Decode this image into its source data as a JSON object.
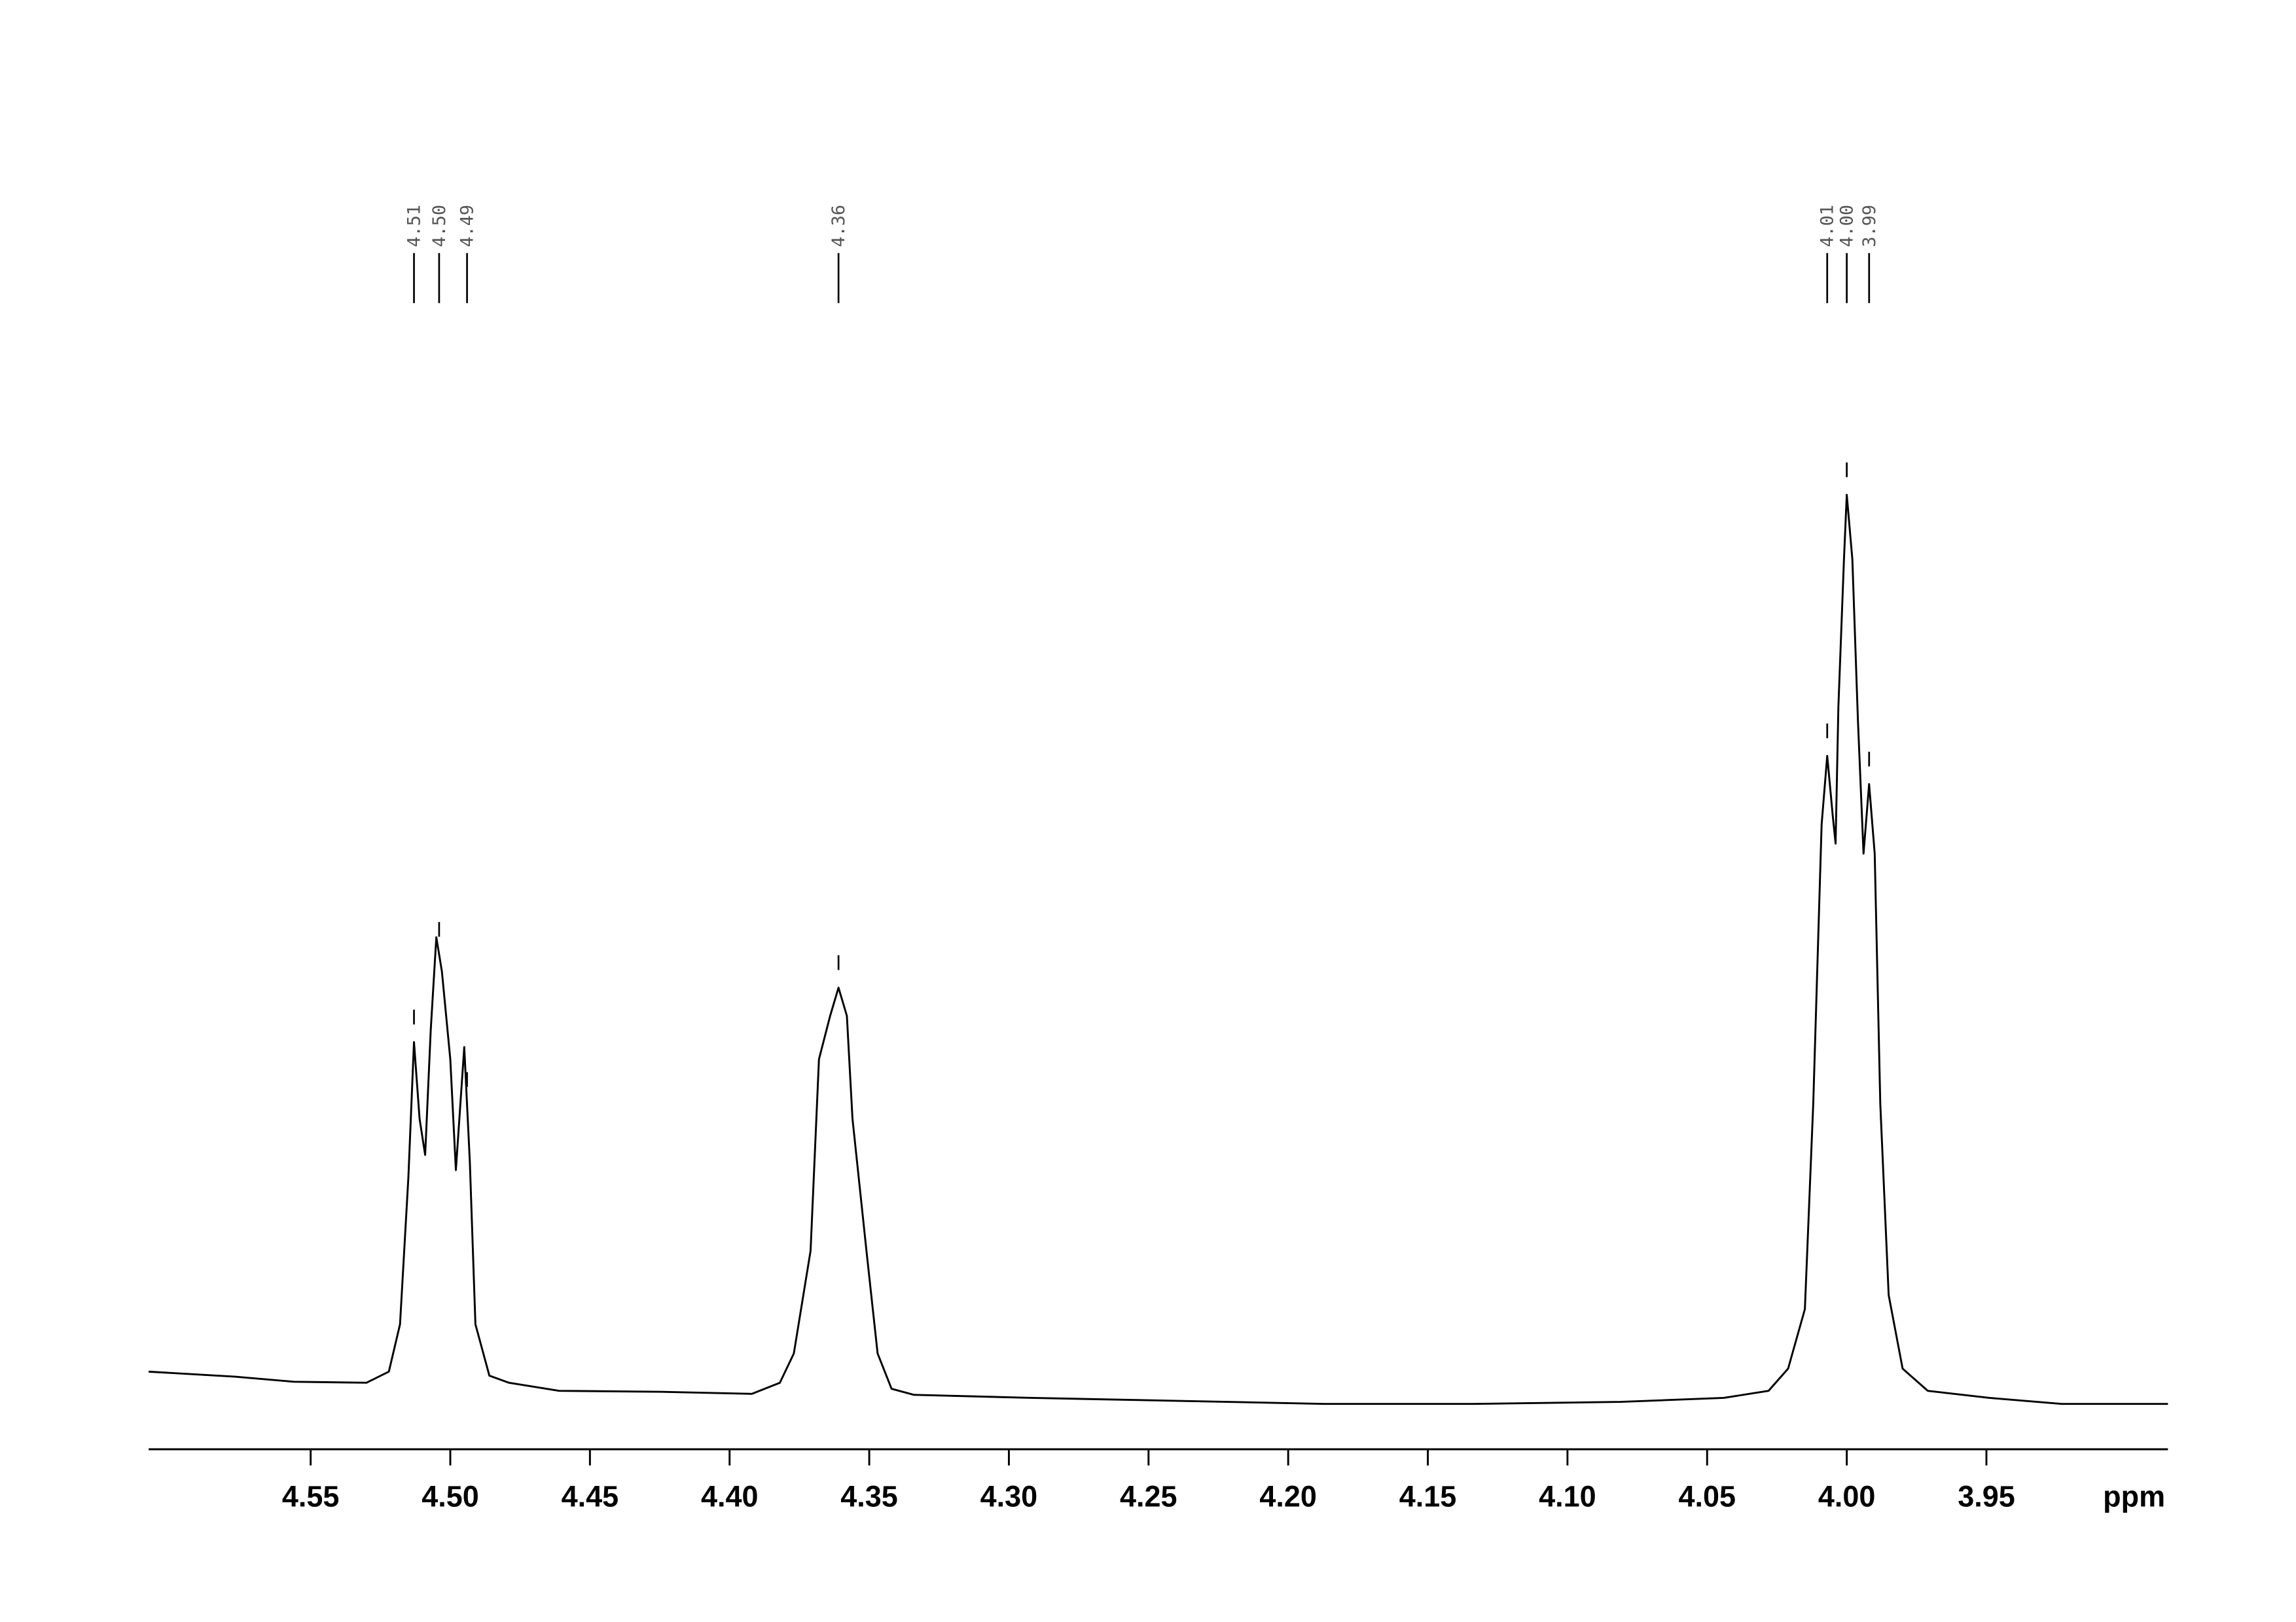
{
  "chart_data": {
    "type": "line",
    "x_label": "ppm",
    "color": "#000000",
    "xlim": [
      4.608,
      3.885
    ],
    "ylim": [
      0,
      100
    ],
    "xticks": [
      4.55,
      {
        "value": 4.5,
        "label": "4.50"
      },
      4.45,
      {
        "value": 4.4,
        "label": "4.40"
      },
      4.35,
      {
        "value": 4.3,
        "label": "4.30"
      },
      4.25,
      {
        "value": 4.2,
        "label": "4.20"
      },
      4.15,
      {
        "value": 4.1,
        "label": "4.10"
      },
      4.05,
      {
        "value": 4,
        "label": "4.00"
      },
      3.95
    ],
    "x": [
      4.608,
      4.577,
      4.556,
      4.53,
      4.522,
      4.518,
      4.515,
      4.513,
      4.511,
      4.509,
      4.507,
      4.505,
      4.503,
      4.5,
      4.498,
      4.495,
      4.493,
      4.491,
      4.486,
      4.479,
      4.461,
      4.424,
      4.392,
      4.382,
      4.377,
      4.371,
      4.368,
      4.364,
      4.361,
      4.358,
      4.356,
      4.351,
      4.347,
      4.342,
      4.334,
      4.292,
      4.239,
      4.187,
      4.134,
      4.081,
      4.044,
      4.028,
      4.021,
      4.015,
      4.012,
      4.009,
      4.007,
      4.005,
      4.004,
      4.003,
      4.001,
      4.0,
      3.998,
      3.996,
      3.994,
      3.992,
      3.99,
      3.988,
      3.985,
      3.98,
      3.971,
      3.949,
      3.923,
      3.885
    ],
    "values": [
      7.7,
      7.2,
      6.7,
      6.6,
      7.7,
      12.4,
      27,
      40.4,
      32.8,
      29.2,
      41.6,
      50.8,
      47.4,
      38.7,
      27.7,
      39.9,
      28.5,
      12.4,
      7.3,
      6.6,
      5.8,
      5.7,
      5.5,
      6.6,
      9.5,
      19.7,
      38.7,
      43,
      45.8,
      43,
      32.8,
      19.7,
      9.5,
      6,
      5.4,
      5.1,
      4.8,
      4.5,
      4.5,
      4.7,
      5.1,
      5.8,
      8,
      13.9,
      34.3,
      62,
      68.8,
      62.8,
      60.1,
      73.7,
      88.3,
      94.7,
      88.3,
      72.3,
      59.1,
      66,
      59.1,
      34.3,
      15.3,
      8,
      5.8,
      5.1,
      4.5,
      4.5
    ],
    "peaks": [
      {
        "value": 4.513,
        "label": "4.51"
      },
      {
        "value": 4.504,
        "label": "4.50"
      },
      {
        "value": 4.494,
        "label": "4.49"
      },
      {
        "value": 4.361,
        "label": "4.36"
      },
      {
        "value": 4.007,
        "label": "4.01"
      },
      {
        "value": 4.0,
        "label": "4.00"
      },
      {
        "value": 3.992,
        "label": "3.99"
      }
    ]
  }
}
